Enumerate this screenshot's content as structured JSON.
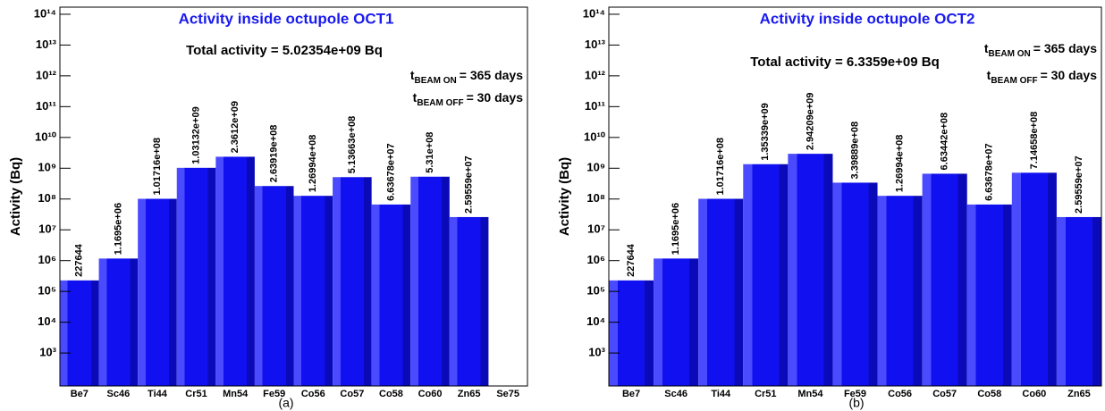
{
  "chart_data": [
    {
      "type": "bar",
      "title": "Activity inside octupole OCT1",
      "subtitle": "Total activity = 5.02354e+09 Bq",
      "annotations": [
        {
          "text": "t",
          "subscript": "BEAM ON",
          "suffix": "= 365 days"
        },
        {
          "text": "t",
          "subscript": "BEAM OFF",
          "suffix": "= 30 days"
        }
      ],
      "y_label": "Activity (Bq)",
      "caption": "(a)",
      "color": "#1010f0",
      "log_y": true,
      "grid": false,
      "categories": [
        "Be7",
        "Sc46",
        "Ti44",
        "Cr51",
        "Mn54",
        "Fe59",
        "Co56",
        "Co57",
        "Co58",
        "Co60",
        "Zn65",
        "Se75"
      ],
      "values": [
        227644,
        1169500,
        101716000,
        1031320000,
        2361200000,
        263919000,
        126994000,
        513663000,
        66367800,
        531000000,
        25955900,
        null
      ],
      "value_labels": [
        "227644",
        "1.1695e+06",
        "1.01716e+08",
        "1.03132e+09",
        "2.3612e+09",
        "2.63919e+08",
        "1.26994e+08",
        "5.13663e+08",
        "6.63678e+07",
        "5.31e+08",
        "2.59559e+07",
        null
      ],
      "ylim": [
        85,
        170000000000000
      ],
      "yticks": [
        {
          "value": 1000,
          "label": "10³"
        },
        {
          "value": 10000,
          "label": "10⁴"
        },
        {
          "value": 100000,
          "label": "10⁵"
        },
        {
          "value": 1000000,
          "label": "10⁶"
        },
        {
          "value": 10000000,
          "label": "10⁷"
        },
        {
          "value": 100000000,
          "label": "10⁸"
        },
        {
          "value": 1000000000,
          "label": "10⁹"
        },
        {
          "value": 10000000000,
          "label": "10¹⁰"
        },
        {
          "value": 100000000000,
          "label": "10¹¹"
        },
        {
          "value": 1000000000000,
          "label": "10¹²"
        },
        {
          "value": 10000000000000,
          "label": "10¹³"
        },
        {
          "value": 100000000000000,
          "label": "10¹⁴"
        }
      ]
    },
    {
      "type": "bar",
      "title": "Activity inside octupole OCT2",
      "subtitle": "Total activity = 6.3359e+09 Bq",
      "annotations": [
        {
          "text": "t",
          "subscript": "BEAM ON",
          "suffix": "= 365 days"
        },
        {
          "text": "t",
          "subscript": "BEAM OFF",
          "suffix": "= 30 days"
        }
      ],
      "y_label": "Activity (Bq)",
      "caption": "(b)",
      "color": "#1010f0",
      "log_y": true,
      "grid": false,
      "categories": [
        "Be7",
        "Sc46",
        "Ti44",
        "Cr51",
        "Mn54",
        "Fe59",
        "Co56",
        "Co57",
        "Co58",
        "Co60",
        "Zn65"
      ],
      "values": [
        227644,
        1169500,
        101716000,
        1353390000,
        2942090000,
        339889000,
        126994000,
        663442000,
        66367800,
        714658000,
        25955900
      ],
      "value_labels": [
        "227644",
        "1.1695e+06",
        "1.01716e+08",
        "1.35339e+09",
        "2.94209e+09",
        "3.39889e+08",
        "1.26994e+08",
        "6.63442e+08",
        "6.63678e+07",
        "7.14658e+08",
        "2.59559e+07"
      ],
      "ylim": [
        85,
        170000000000000
      ],
      "yticks": [
        {
          "value": 1000,
          "label": "10³"
        },
        {
          "value": 10000,
          "label": "10⁴"
        },
        {
          "value": 100000,
          "label": "10⁵"
        },
        {
          "value": 1000000,
          "label": "10⁶"
        },
        {
          "value": 10000000,
          "label": "10⁷"
        },
        {
          "value": 100000000,
          "label": "10⁸"
        },
        {
          "value": 1000000000,
          "label": "10⁹"
        },
        {
          "value": 10000000000,
          "label": "10¹⁰"
        },
        {
          "value": 100000000000,
          "label": "10¹¹"
        },
        {
          "value": 1000000000000,
          "label": "10¹²"
        },
        {
          "value": 10000000000000,
          "label": "10¹³"
        },
        {
          "value": 100000000000000,
          "label": "10¹⁴"
        }
      ]
    }
  ]
}
